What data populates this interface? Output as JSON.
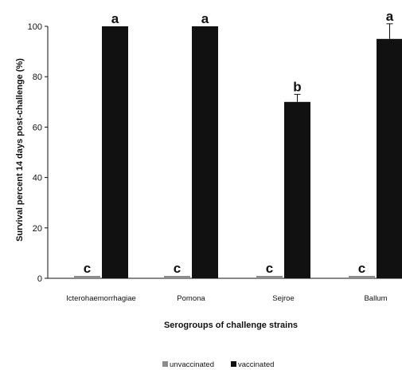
{
  "chart_data": {
    "type": "bar",
    "title": "",
    "xlabel": "Serogroups of challenge strains",
    "ylabel": "Survival percent 14 days post-challenge  (%)",
    "ylim": [
      0,
      100
    ],
    "yticks": [
      0,
      20,
      40,
      60,
      80,
      100
    ],
    "grid": false,
    "legend_position": "bottom",
    "categories": [
      "Icterohaemorrhagiae",
      "Pomona",
      "Sejroe",
      "Ballum"
    ],
    "series": [
      {
        "name": "unvaccinated",
        "color": "#8c8c8c",
        "values": [
          0,
          0,
          0,
          0
        ],
        "errors": [
          0,
          0,
          0,
          0
        ],
        "labels": [
          "c",
          "c",
          "c",
          "c"
        ]
      },
      {
        "name": "vaccinated",
        "color": "#111111",
        "values": [
          100,
          100,
          70,
          95
        ],
        "errors": [
          0,
          0,
          3,
          6
        ],
        "labels": [
          "a",
          "a",
          "b",
          "a"
        ]
      }
    ]
  }
}
